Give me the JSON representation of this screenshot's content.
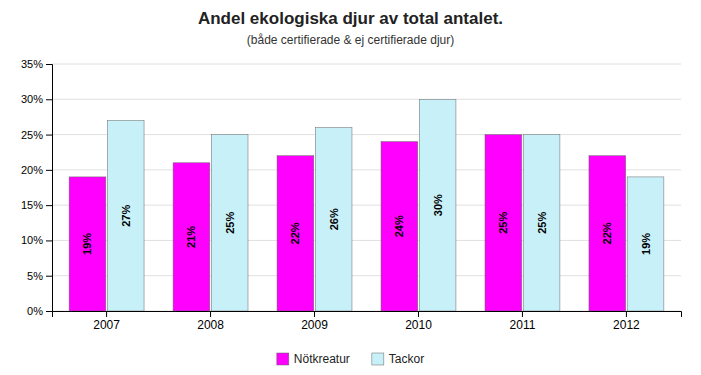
{
  "chart_data": {
    "type": "bar",
    "title": "Andel ekologiska  djur av total antalet.",
    "subtitle": "(både certifierade & ej certifierade djur)",
    "categories": [
      "2007",
      "2008",
      "2009",
      "2010",
      "2011",
      "2012"
    ],
    "series": [
      {
        "name": "Nötkreatur",
        "color": "#FF00FF",
        "values": [
          0.19,
          0.21,
          0.22,
          0.24,
          0.25,
          0.22
        ],
        "value_labels": [
          "19%",
          "21%",
          "22%",
          "24%",
          "25%",
          "22%"
        ]
      },
      {
        "name": "Tackor",
        "color": "#C8F0F8",
        "values": [
          0.27,
          0.25,
          0.26,
          0.3,
          0.25,
          0.19
        ],
        "value_labels": [
          "27%",
          "25%",
          "26%",
          "30%",
          "25%",
          "19%"
        ]
      }
    ],
    "ylim": [
      0,
      0.35
    ],
    "yticks": [
      {
        "value": 0.0,
        "label": "0%"
      },
      {
        "value": 0.05,
        "label": "5%"
      },
      {
        "value": 0.1,
        "label": "10%"
      },
      {
        "value": 0.15,
        "label": "15%"
      },
      {
        "value": 0.2,
        "label": "20%"
      },
      {
        "value": 0.25,
        "label": "25%"
      },
      {
        "value": 0.3,
        "label": "30%"
      },
      {
        "value": 0.35,
        "label": "35%"
      }
    ],
    "grid": true,
    "data_labels": true,
    "legend": "bottom"
  }
}
